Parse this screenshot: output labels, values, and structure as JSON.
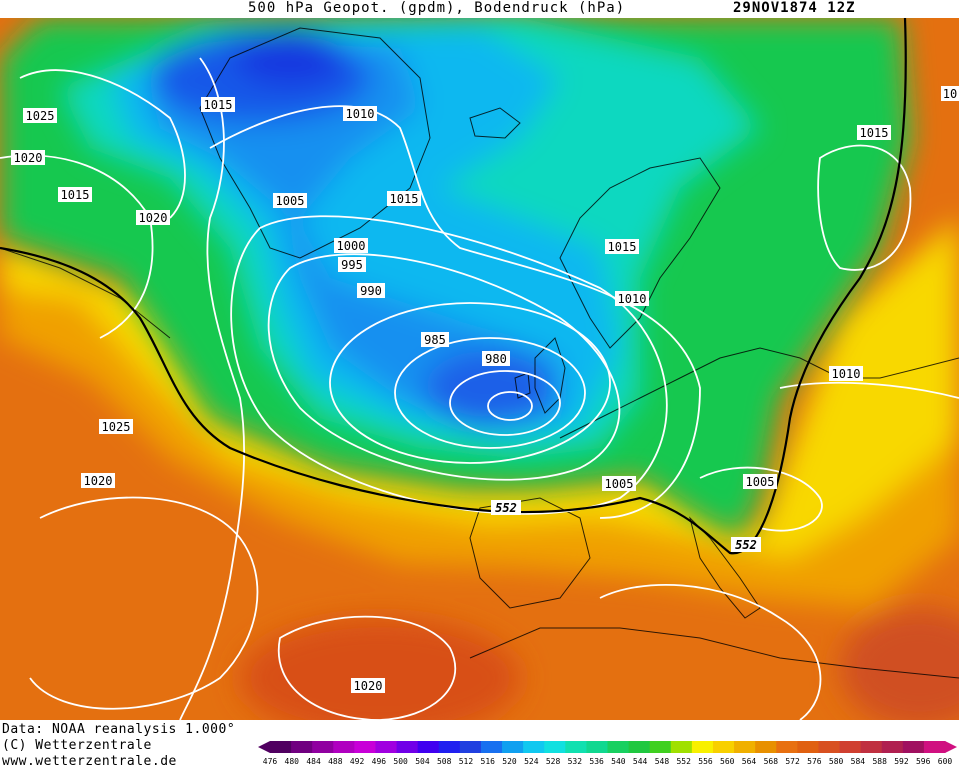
{
  "header": {
    "title": "500 hPa Geopot. (gpdm), Bodendruck (hPa)",
    "datetime": "29NOV1874 12Z"
  },
  "credits": {
    "line1": "Data: NOAA reanalysis 1.000°",
    "line2": "(C) Wetterzentrale",
    "line3": "www.wetterzentrale.de"
  },
  "colors": {
    "low": "#2040e0",
    "mid": "#18d060",
    "high": "#e87010",
    "isobar": "#ffffff",
    "contour552": "#000000"
  },
  "isobar_labels": [
    {
      "text": "1025"
    },
    {
      "text": "1020"
    },
    {
      "text": "1015"
    },
    {
      "text": "1015"
    },
    {
      "text": "1010"
    },
    {
      "text": "1020"
    },
    {
      "text": "1005"
    },
    {
      "text": "1015"
    },
    {
      "text": "1000"
    },
    {
      "text": "995"
    },
    {
      "text": "990"
    },
    {
      "text": "985"
    },
    {
      "text": "980"
    },
    {
      "text": "1015"
    },
    {
      "text": "1010"
    },
    {
      "text": "1015"
    },
    {
      "text": "1010"
    },
    {
      "text": "1025"
    },
    {
      "text": "1020"
    },
    {
      "text": "1005"
    },
    {
      "text": "1005"
    },
    {
      "text": "1020"
    },
    {
      "text": "10"
    }
  ],
  "contour_labels": [
    {
      "text": "552"
    },
    {
      "text": "552"
    }
  ],
  "colorbar": {
    "ticks": [
      "476",
      "480",
      "484",
      "488",
      "492",
      "496",
      "500",
      "504",
      "508",
      "512",
      "516",
      "520",
      "524",
      "528",
      "532",
      "536",
      "540",
      "544",
      "548",
      "552",
      "556",
      "560",
      "564",
      "568",
      "572",
      "576",
      "580",
      "584",
      "588",
      "592",
      "596",
      "600"
    ],
    "colors": [
      "#500060",
      "#700080",
      "#9000a0",
      "#b000c0",
      "#c800d8",
      "#a000e0",
      "#7000e8",
      "#4000f0",
      "#2020f0",
      "#2040e0",
      "#1870f0",
      "#10a0f0",
      "#10c8f0",
      "#10e0e0",
      "#10e0b0",
      "#10d890",
      "#18d060",
      "#20c840",
      "#40d020",
      "#a0e000",
      "#f8f000",
      "#f8d000",
      "#f0b000",
      "#e89000",
      "#e87010",
      "#e06010",
      "#d85020",
      "#d04030",
      "#c03040",
      "#b02050",
      "#a01060",
      "#d01080"
    ]
  }
}
